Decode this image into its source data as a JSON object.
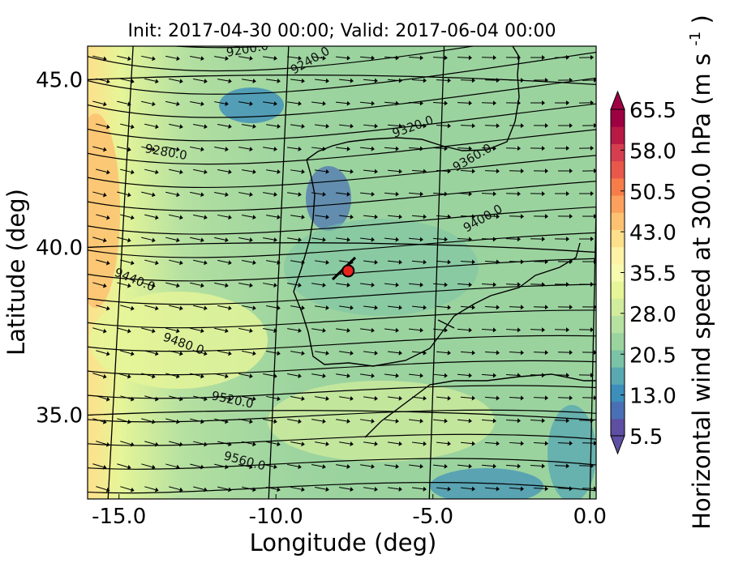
{
  "title": "Init: 2017-04-30 00:00; Valid: 2017-06-04 00:00",
  "xlabel": "Longitude (deg)",
  "ylabel": "Latitude (deg)",
  "colorbar": {
    "label": "Horizontal wind speed at 300.0 hPa (m s",
    "label_sup": "-1",
    "label_close": ")",
    "ticks": [
      "65.5",
      "58.0",
      "50.5",
      "43.0",
      "35.5",
      "28.0",
      "20.5",
      "13.0",
      "5.5"
    ],
    "colors": [
      "#5e4fa2",
      "#4a6fb5",
      "#3d8fbb",
      "#5aa9b2",
      "#7bc3a6",
      "#9bd39f",
      "#b6e1a1",
      "#d0ec9c",
      "#e6f598",
      "#f6fbaf",
      "#fef2a6",
      "#fee08b",
      "#fdc271",
      "#fca05d",
      "#f67d4a",
      "#e8584a",
      "#d53e4f",
      "#b81a46",
      "#9e0142"
    ]
  },
  "chart_data": {
    "type": "map",
    "x_ticks": [
      "-15.0",
      "-10.0",
      "-5.0",
      "0.0"
    ],
    "y_ticks": [
      "45.0",
      "40.0",
      "35.0"
    ],
    "xlim": [
      -16,
      0.2
    ],
    "ylim": [
      32.5,
      46
    ],
    "contours": [
      {
        "value": 9200.0,
        "label": "9200.0"
      },
      {
        "value": 9240.0,
        "label": "9240.0"
      },
      {
        "value": 9280.0,
        "label": "9280.0"
      },
      {
        "value": 9320.0,
        "label": "9320.0"
      },
      {
        "value": 9360.0,
        "label": "9360.0"
      },
      {
        "value": 9400.0,
        "label": "9400.0"
      },
      {
        "value": 9440.0,
        "label": "9440.0"
      },
      {
        "value": 9480.0,
        "label": "9480.0"
      },
      {
        "value": 9520.0,
        "label": "9520.0"
      },
      {
        "value": 9560.0,
        "label": "9560.0"
      }
    ],
    "marker": {
      "lon": -7.7,
      "lat": 39.3,
      "color": "#e8221c"
    },
    "wind_arrows": "westerly"
  }
}
